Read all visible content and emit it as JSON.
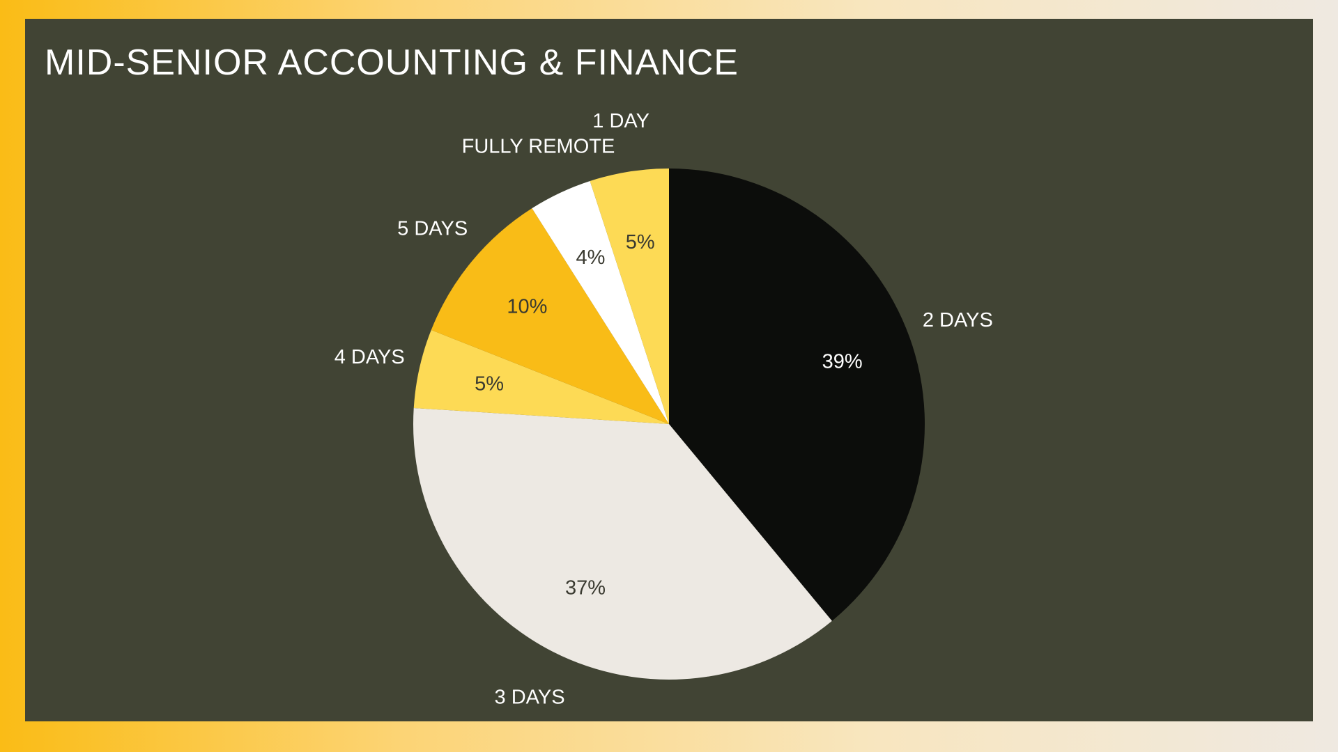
{
  "chart_data": {
    "type": "pie",
    "title": "MID-SENIOR ACCOUNTING & FINANCE",
    "start_angle_deg": 0,
    "direction": "clockwise",
    "legend": "none",
    "slices": [
      {
        "label": "2 DAYS",
        "value": 39,
        "value_label": "39%",
        "color": "#0c0d0b",
        "value_text_color": "#ffffff"
      },
      {
        "label": "3 DAYS",
        "value": 37,
        "value_label": "37%",
        "color": "#ede9e3",
        "value_text_color": "#3a3a30"
      },
      {
        "label": "4 DAYS",
        "value": 5,
        "value_label": "5%",
        "color": "#fdda55",
        "value_text_color": "#3a3a30"
      },
      {
        "label": "5 DAYS",
        "value": 10,
        "value_label": "10%",
        "color": "#f9bc17",
        "value_text_color": "#3a3a30"
      },
      {
        "label": "FULLY REMOTE",
        "value": 4,
        "value_label": "4%",
        "color": "#ffffff",
        "value_text_color": "#3a3a30"
      },
      {
        "label": "1 DAY",
        "value": 5,
        "value_label": "5%",
        "color": "#fdda55",
        "value_text_color": "#3a3a30"
      }
    ]
  },
  "colors": {
    "panel_background": "#414434",
    "frame_gradient": [
      "#fabc16",
      "#fcd475",
      "#f8e6bf",
      "#efe9e1"
    ],
    "title_text": "#ffffff"
  }
}
